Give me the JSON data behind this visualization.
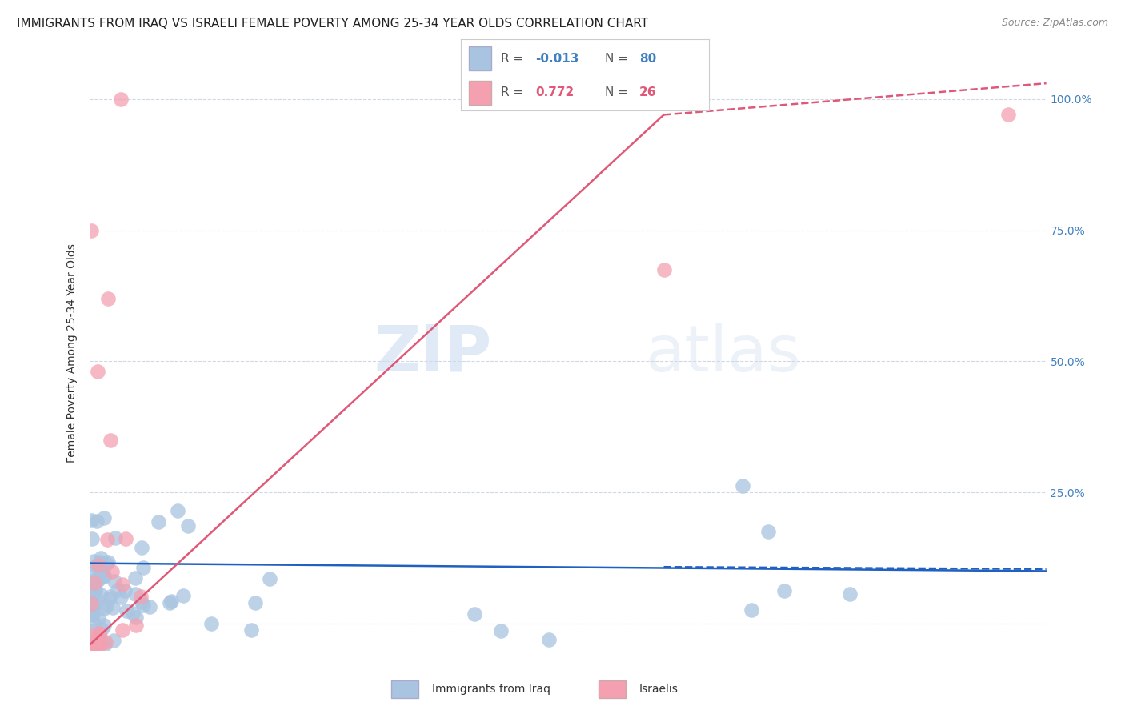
{
  "title": "IMMIGRANTS FROM IRAQ VS ISRAELI FEMALE POVERTY AMONG 25-34 YEAR OLDS CORRELATION CHART",
  "source": "Source: ZipAtlas.com",
  "ylabel": "Female Poverty Among 25-34 Year Olds",
  "yticks": [
    0.0,
    0.25,
    0.5,
    0.75,
    1.0
  ],
  "ytick_labels": [
    "",
    "25.0%",
    "50.0%",
    "75.0%",
    "100.0%"
  ],
  "xmin": 0.0,
  "xmax": 0.5,
  "ymin": -0.05,
  "ymax": 1.08,
  "watermark_zip": "ZIP",
  "watermark_atlas": "atlas",
  "legend_blue_R": "-0.013",
  "legend_blue_N": "80",
  "legend_pink_R": "0.772",
  "legend_pink_N": "26",
  "legend_blue_label": "Immigrants from Iraq",
  "legend_pink_label": "Israelis",
  "blue_color": "#a8c4e0",
  "pink_color": "#f4a0b0",
  "blue_line_color": "#2060c0",
  "pink_line_color": "#e05878",
  "background_color": "#ffffff",
  "grid_color": "#d0d8e8",
  "title_fontsize": 11,
  "axis_label_fontsize": 10,
  "tick_fontsize": 10,
  "legend_fontsize": 11
}
